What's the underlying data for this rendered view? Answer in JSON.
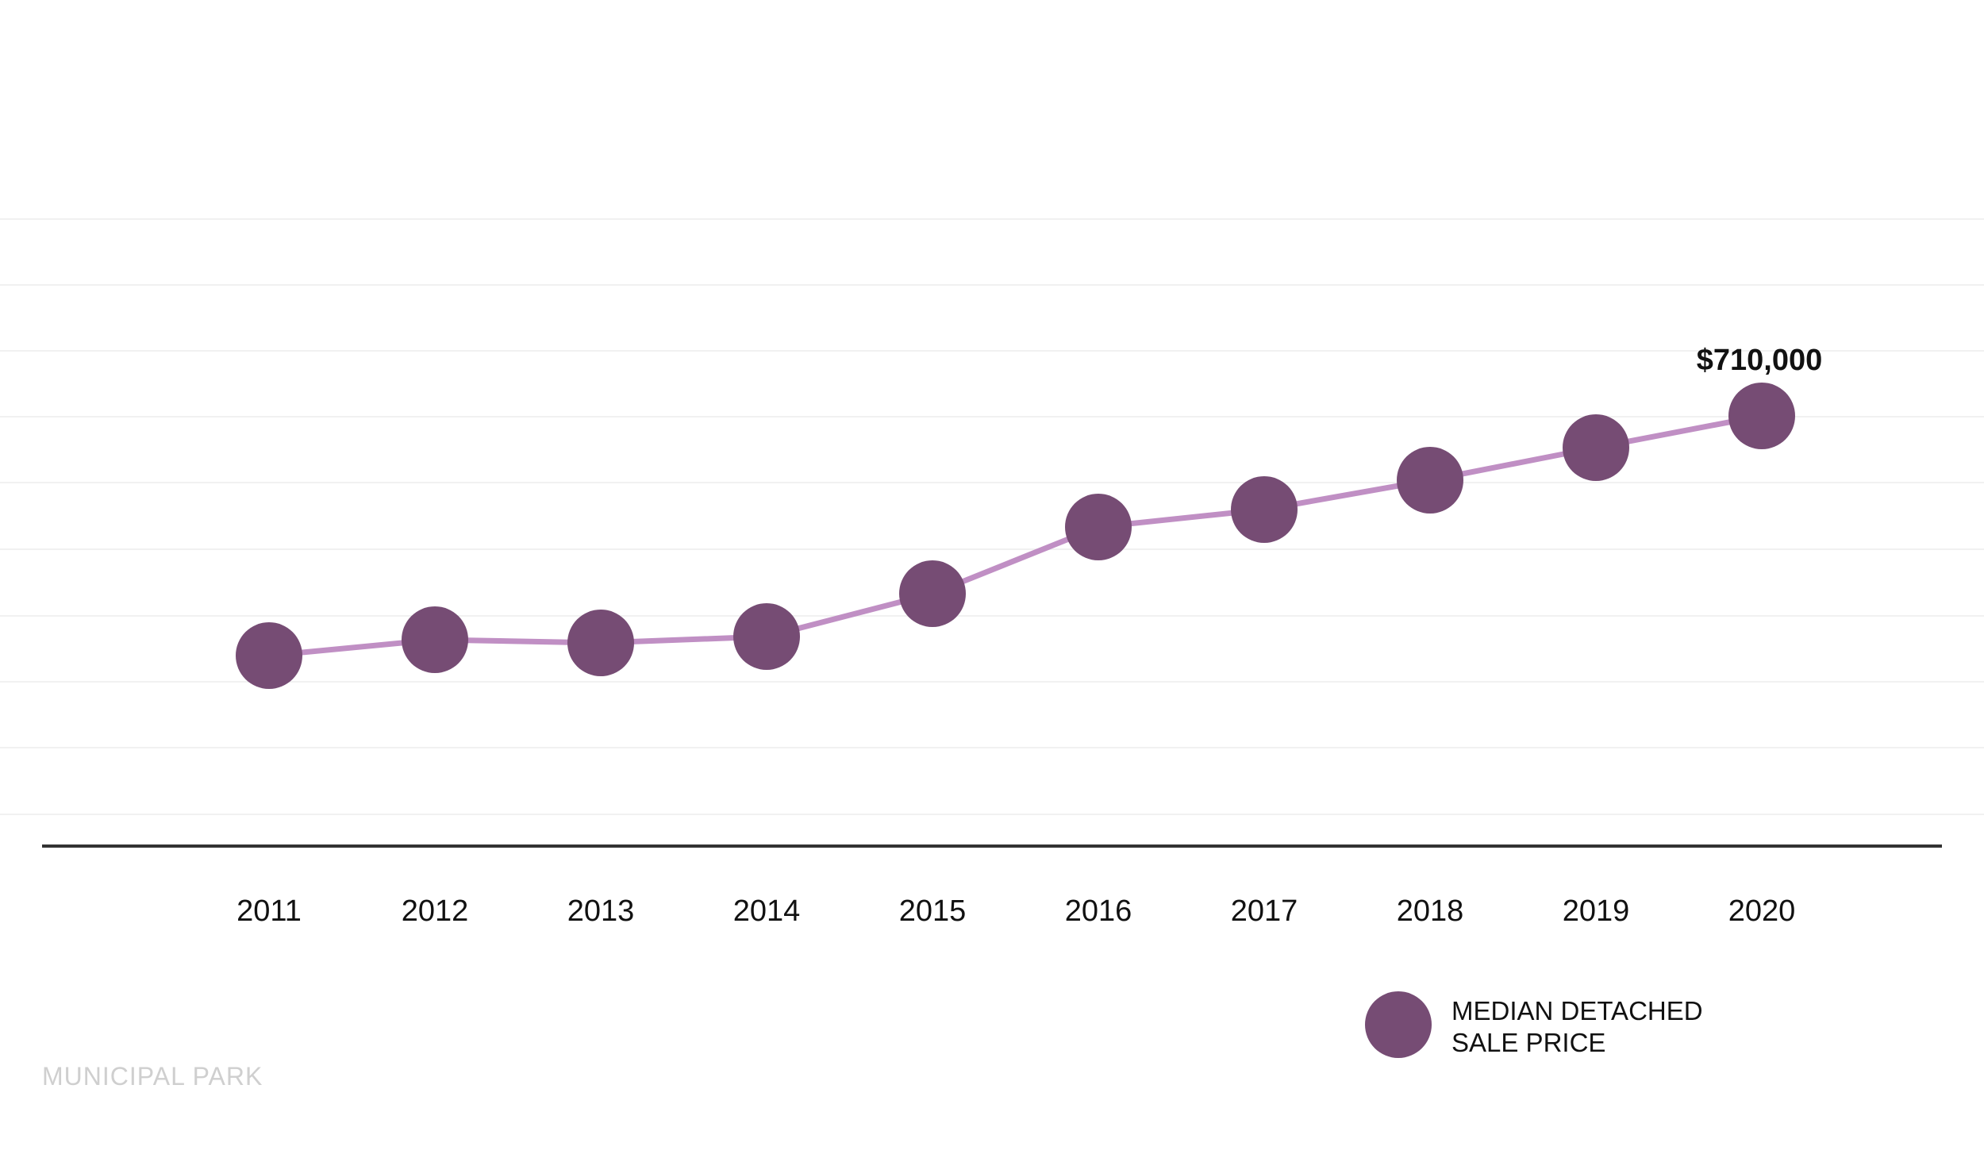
{
  "chart_data": {
    "type": "line",
    "categories": [
      "2011",
      "2012",
      "2013",
      "2014",
      "2015",
      "2016",
      "2017",
      "2018",
      "2019",
      "2020"
    ],
    "series": [
      {
        "name": "MEDIAN DETACHED SALE PRICE",
        "values": [
          410000,
          422000,
          420000,
          424000,
          457000,
          505000,
          518000,
          540000,
          563000,
          710000
        ]
      }
    ],
    "annotations": [
      {
        "category": "2020",
        "text": "$710,000"
      }
    ],
    "legend": {
      "position": "bottom-right",
      "lines": [
        "MEDIAN DETACHED",
        "SALE PRICE"
      ]
    },
    "grid": "horizontal",
    "colors": {
      "marker": "#764c74",
      "line": "#c08fc4",
      "axis": "#333333",
      "grid": "#f1f1f1"
    }
  },
  "watermark": "MUNICIPAL PARK"
}
